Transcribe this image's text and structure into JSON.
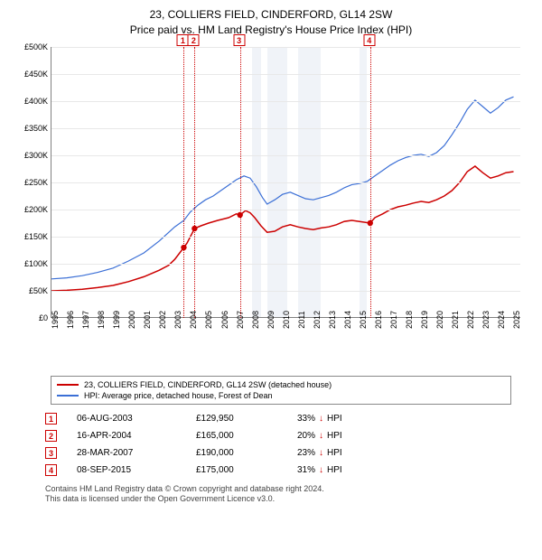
{
  "title_line1": "23, COLLIERS FIELD, CINDERFORD, GL14 2SW",
  "title_line2": "Price paid vs. HM Land Registry's House Price Index (HPI)",
  "chart": {
    "type": "line",
    "x_range_years": [
      1995,
      2025.5
    ],
    "y_range": [
      0,
      500000
    ],
    "y_ticks": [
      0,
      50000,
      100000,
      150000,
      200000,
      250000,
      300000,
      350000,
      400000,
      450000,
      500000
    ],
    "y_tick_labels": [
      "£0",
      "£50K",
      "£100K",
      "£150K",
      "£200K",
      "£250K",
      "£300K",
      "£350K",
      "£400K",
      "£450K",
      "£500K"
    ],
    "x_ticks": [
      1995,
      1996,
      1997,
      1998,
      1999,
      2000,
      2001,
      2002,
      2003,
      2004,
      2005,
      2006,
      2007,
      2008,
      2009,
      2010,
      2011,
      2012,
      2013,
      2014,
      2015,
      2016,
      2017,
      2018,
      2019,
      2020,
      2021,
      2022,
      2023,
      2024,
      2025
    ],
    "grid_color": "#e8e8e8",
    "axis_color": "#808080",
    "shaded_band_color": "#f0f3f8",
    "shaded_bands_years": [
      [
        2008.0,
        2008.6
      ],
      [
        2009.0,
        2010.3
      ],
      [
        2011.0,
        2012.5
      ],
      [
        2015.0,
        2015.5
      ]
    ],
    "series": [
      {
        "name": "property",
        "color": "#cc0000",
        "width": 1.5,
        "points": [
          [
            1995.0,
            50
          ],
          [
            1996.0,
            51
          ],
          [
            1997.0,
            53
          ],
          [
            1998.0,
            56
          ],
          [
            1999.0,
            60
          ],
          [
            2000.0,
            67
          ],
          [
            2001.0,
            76
          ],
          [
            2002.0,
            88
          ],
          [
            2002.6,
            97
          ],
          [
            2003.0,
            108
          ],
          [
            2003.59,
            129.95
          ],
          [
            2003.8,
            138
          ],
          [
            2004.29,
            165
          ],
          [
            2004.7,
            170
          ],
          [
            2005.2,
            175
          ],
          [
            2005.8,
            180
          ],
          [
            2006.5,
            185
          ],
          [
            2007.0,
            192
          ],
          [
            2007.24,
            190
          ],
          [
            2007.6,
            198
          ],
          [
            2007.9,
            194
          ],
          [
            2008.2,
            185
          ],
          [
            2008.6,
            170
          ],
          [
            2009.0,
            158
          ],
          [
            2009.5,
            160
          ],
          [
            2010.0,
            168
          ],
          [
            2010.5,
            172
          ],
          [
            2011.0,
            168
          ],
          [
            2011.5,
            165
          ],
          [
            2012.0,
            163
          ],
          [
            2012.5,
            166
          ],
          [
            2013.0,
            168
          ],
          [
            2013.5,
            172
          ],
          [
            2014.0,
            178
          ],
          [
            2014.5,
            180
          ],
          [
            2015.0,
            178
          ],
          [
            2015.69,
            175
          ],
          [
            2016.0,
            185
          ],
          [
            2016.5,
            192
          ],
          [
            2017.0,
            200
          ],
          [
            2017.5,
            205
          ],
          [
            2018.0,
            208
          ],
          [
            2018.5,
            212
          ],
          [
            2019.0,
            215
          ],
          [
            2019.5,
            213
          ],
          [
            2020.0,
            218
          ],
          [
            2020.5,
            225
          ],
          [
            2021.0,
            235
          ],
          [
            2021.5,
            250
          ],
          [
            2022.0,
            270
          ],
          [
            2022.5,
            280
          ],
          [
            2023.0,
            268
          ],
          [
            2023.5,
            258
          ],
          [
            2024.0,
            262
          ],
          [
            2024.5,
            268
          ],
          [
            2025.0,
            270
          ]
        ]
      },
      {
        "name": "hpi",
        "color": "#3b6fd6",
        "width": 1.2,
        "points": [
          [
            1995.0,
            72
          ],
          [
            1996.0,
            74
          ],
          [
            1997.0,
            78
          ],
          [
            1998.0,
            84
          ],
          [
            1999.0,
            92
          ],
          [
            2000.0,
            105
          ],
          [
            2001.0,
            120
          ],
          [
            2002.0,
            142
          ],
          [
            2003.0,
            168
          ],
          [
            2003.6,
            180
          ],
          [
            2004.0,
            195
          ],
          [
            2004.5,
            208
          ],
          [
            2005.0,
            218
          ],
          [
            2005.5,
            225
          ],
          [
            2006.0,
            235
          ],
          [
            2006.5,
            245
          ],
          [
            2007.0,
            255
          ],
          [
            2007.5,
            262
          ],
          [
            2007.9,
            258
          ],
          [
            2008.3,
            242
          ],
          [
            2008.7,
            222
          ],
          [
            2009.0,
            210
          ],
          [
            2009.5,
            218
          ],
          [
            2010.0,
            228
          ],
          [
            2010.5,
            232
          ],
          [
            2011.0,
            226
          ],
          [
            2011.5,
            220
          ],
          [
            2012.0,
            218
          ],
          [
            2012.5,
            222
          ],
          [
            2013.0,
            226
          ],
          [
            2013.5,
            232
          ],
          [
            2014.0,
            240
          ],
          [
            2014.5,
            246
          ],
          [
            2015.0,
            248
          ],
          [
            2015.5,
            252
          ],
          [
            2016.0,
            262
          ],
          [
            2016.5,
            272
          ],
          [
            2017.0,
            282
          ],
          [
            2017.5,
            290
          ],
          [
            2018.0,
            296
          ],
          [
            2018.5,
            300
          ],
          [
            2019.0,
            302
          ],
          [
            2019.5,
            298
          ],
          [
            2020.0,
            305
          ],
          [
            2020.5,
            318
          ],
          [
            2021.0,
            338
          ],
          [
            2021.5,
            360
          ],
          [
            2022.0,
            385
          ],
          [
            2022.5,
            402
          ],
          [
            2023.0,
            390
          ],
          [
            2023.5,
            378
          ],
          [
            2024.0,
            388
          ],
          [
            2024.5,
            402
          ],
          [
            2025.0,
            408
          ]
        ]
      }
    ],
    "sale_markers": [
      {
        "num": "1",
        "year": 2003.59,
        "price_k": 129.95
      },
      {
        "num": "2",
        "year": 2004.29,
        "price_k": 165
      },
      {
        "num": "3",
        "year": 2007.24,
        "price_k": 190
      },
      {
        "num": "4",
        "year": 2015.69,
        "price_k": 175
      }
    ]
  },
  "legend": {
    "items": [
      {
        "color": "#cc0000",
        "label": "23, COLLIERS FIELD, CINDERFORD, GL14 2SW (detached house)"
      },
      {
        "color": "#3b6fd6",
        "label": "HPI: Average price, detached house, Forest of Dean"
      }
    ]
  },
  "sales": [
    {
      "num": "1",
      "date": "06-AUG-2003",
      "price": "£129,950",
      "delta": "33%",
      "dir": "↓",
      "suffix": "HPI"
    },
    {
      "num": "2",
      "date": "16-APR-2004",
      "price": "£165,000",
      "delta": "20%",
      "dir": "↓",
      "suffix": "HPI"
    },
    {
      "num": "3",
      "date": "28-MAR-2007",
      "price": "£190,000",
      "delta": "23%",
      "dir": "↓",
      "suffix": "HPI"
    },
    {
      "num": "4",
      "date": "08-SEP-2015",
      "price": "£175,000",
      "delta": "31%",
      "dir": "↓",
      "suffix": "HPI"
    }
  ],
  "footer_line1": "Contains HM Land Registry data © Crown copyright and database right 2024.",
  "footer_line2": "This data is licensed under the Open Government Licence v3.0."
}
